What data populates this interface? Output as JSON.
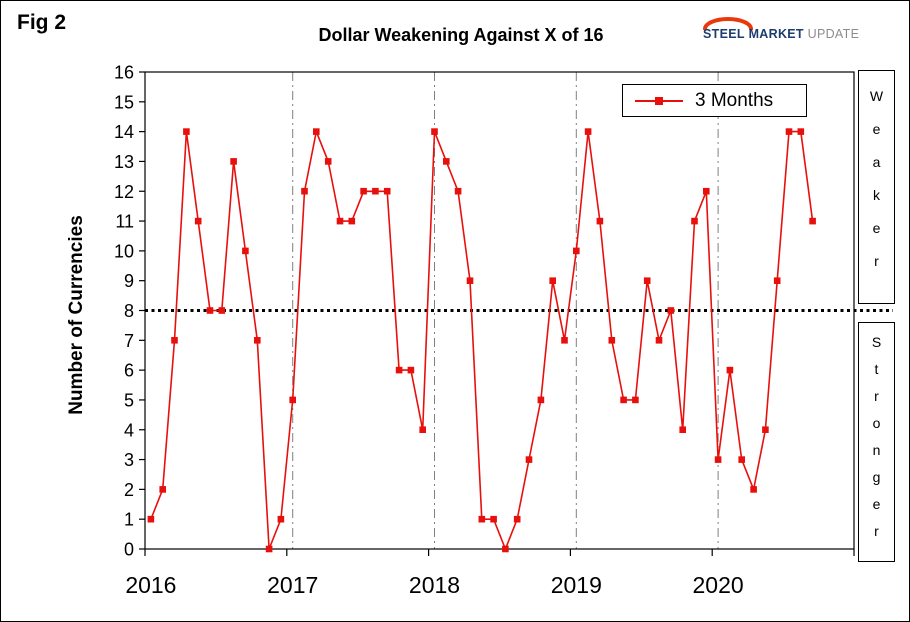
{
  "fig_label": "Fig 2",
  "logo": {
    "steel": "STEEL",
    "market": "MARKET",
    "update": "UPDATE"
  },
  "legend": {
    "series_label": "3 Months"
  },
  "side_labels": {
    "upper": "Weaker",
    "lower": "Stronger"
  },
  "colors": {
    "series": "#e8100c",
    "threshold": "#000000",
    "year_gridline": "#808080",
    "axis": "#000000",
    "logo_navy": "#1d3d6e",
    "logo_gray": "#8c8c8c",
    "logo_swoosh": "#e8380c"
  },
  "chart_data": {
    "type": "line",
    "title": "Dollar Weakening Against X of 16",
    "ylabel": "Number of Currencies",
    "ylim": [
      0,
      16
    ],
    "y_tick_step": 1,
    "x_start": "2016-01",
    "frequency": "monthly",
    "x_domain_months": 60,
    "x_year_labels": [
      {
        "label": "2016",
        "month": 0
      },
      {
        "label": "2017",
        "month": 12
      },
      {
        "label": "2018",
        "month": 24
      },
      {
        "label": "2019",
        "month": 36
      },
      {
        "label": "2020",
        "month": 48
      }
    ],
    "x_axis_tick_months": [
      0,
      12,
      24,
      36,
      48,
      60
    ],
    "year_gridline_months": [
      12,
      24,
      36,
      48
    ],
    "threshold_line": {
      "value": 8,
      "style": "dotted"
    },
    "legend_position": "top-right",
    "grid": "vertical-dash-dot-only",
    "series": [
      {
        "name": "3 Months",
        "marker": "square",
        "values": [
          1,
          2,
          7,
          14,
          11,
          8,
          8,
          13,
          10,
          7,
          0,
          1,
          5,
          12,
          14,
          13,
          11,
          11,
          12,
          12,
          12,
          6,
          6,
          4,
          14,
          13,
          12,
          9,
          1,
          1,
          0,
          1,
          3,
          5,
          9,
          7,
          10,
          14,
          11,
          7,
          5,
          5,
          9,
          7,
          8,
          4,
          11,
          12,
          3,
          6,
          3,
          2,
          4,
          9,
          14,
          14,
          11
        ]
      }
    ]
  }
}
